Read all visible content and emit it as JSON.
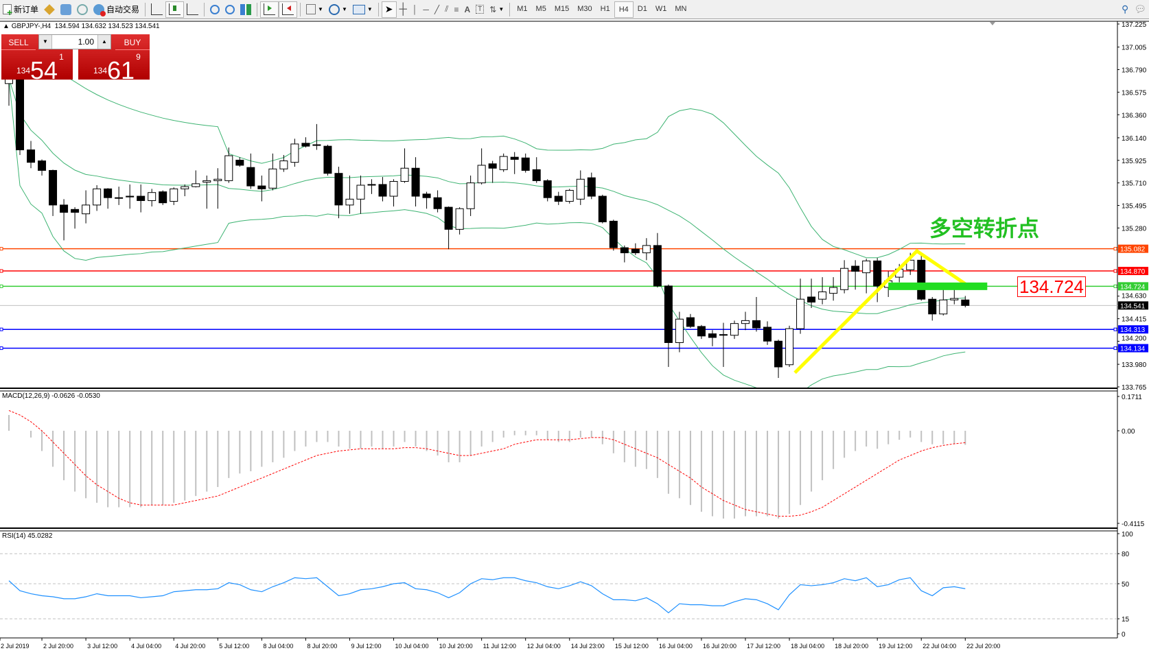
{
  "toolbar": {
    "new_order": "新订单",
    "auto_trading": "自动交易",
    "timeframes": [
      "M1",
      "M5",
      "M15",
      "M30",
      "H1",
      "H4",
      "D1",
      "W1",
      "MN"
    ],
    "active_timeframe": "H4",
    "icons": [
      "new-order-icon",
      "experts-icon",
      "market-watch-icon",
      "signals-icon",
      "auto-trading-icon",
      "bar-chart-icon",
      "candlestick-icon",
      "line-chart-icon",
      "zoom-in-icon",
      "zoom-out-icon",
      "tile-windows-icon",
      "auto-scroll-icon",
      "chart-shift-icon",
      "indicators-icon",
      "periods-icon",
      "templates-icon",
      "cursor-icon",
      "crosshair-icon",
      "vertical-line-icon",
      "horizontal-line-icon",
      "trendline-icon",
      "equidistant-channel-icon",
      "fibonacci-icon",
      "text-icon",
      "text-label-icon",
      "arrows-icon",
      "search-icon",
      "chat-icon"
    ]
  },
  "header": {
    "symbol": "GBPJPY-,H4",
    "ohlc": "134.594 134.632 134.523 134.541"
  },
  "one_click": {
    "sell_label": "SELL",
    "buy_label": "BUY",
    "lots": "1.00",
    "sell_prefix": "134",
    "sell_big": "54",
    "sell_small": "1",
    "buy_prefix": "134",
    "buy_big": "61",
    "buy_small": "9"
  },
  "colors": {
    "bull_fill": "#ffffff",
    "bear_fill": "#000000",
    "bands": "#3cb371",
    "macd_hist": "#c0c0c0",
    "macd_signal": "#ff0000",
    "rsi": "#1e90ff",
    "annotation_text": "#22c022",
    "annotation_lines": "#ffff00"
  },
  "chart_data": [
    {
      "type": "candlestick",
      "title": "GBPJPY-,H4",
      "ylim": [
        133.765,
        137.225
      ],
      "y_ticks": [
        "137.225",
        "137.005",
        "136.790",
        "136.575",
        "136.360",
        "136.140",
        "135.925",
        "135.710",
        "135.495",
        "135.280",
        "134.630",
        "134.415",
        "134.200",
        "133.980",
        "133.765"
      ],
      "x_labels": [
        "2 Jul 2019",
        "2 Jul 20:00",
        "3 Jul 12:00",
        "4 Jul 04:00",
        "4 Jul 20:00",
        "5 Jul 12:00",
        "8 Jul 04:00",
        "8 Jul 20:00",
        "9 Jul 12:00",
        "10 Jul 04:00",
        "10 Jul 20:00",
        "11 Jul 12:00",
        "12 Jul 04:00",
        "14 Jul 23:00",
        "15 Jul 12:00",
        "16 Jul 04:00",
        "16 Jul 20:00",
        "17 Jul 12:00",
        "18 Jul 04:00",
        "18 Jul 20:00",
        "19 Jul 12:00",
        "22 Jul 04:00",
        "22 Jul 20:00"
      ],
      "ohlc": [
        [
          136.657,
          136.762,
          136.446,
          136.706
        ],
        [
          136.706,
          136.727,
          135.976,
          136.025
        ],
        [
          136.025,
          136.11,
          135.85,
          135.906
        ],
        [
          135.92,
          135.934,
          135.78,
          135.829
        ],
        [
          135.829,
          135.836,
          135.394,
          135.499
        ],
        [
          135.499,
          135.555,
          135.162,
          135.429
        ],
        [
          135.457,
          135.478,
          135.274,
          135.429
        ],
        [
          135.415,
          135.639,
          135.324,
          135.499
        ],
        [
          135.499,
          135.688,
          135.443,
          135.653
        ],
        [
          135.653,
          135.66,
          135.464,
          135.569
        ],
        [
          135.569,
          135.674,
          135.499,
          135.569
        ],
        [
          135.583,
          135.695,
          135.464,
          135.576
        ],
        [
          135.583,
          135.695,
          135.429,
          135.541
        ],
        [
          135.541,
          135.653,
          135.485,
          135.618
        ],
        [
          135.625,
          135.639,
          135.499,
          135.52
        ],
        [
          135.534,
          135.667,
          135.499,
          135.653
        ],
        [
          135.653,
          135.695,
          135.583,
          135.674
        ],
        [
          135.674,
          135.829,
          135.667,
          135.702
        ],
        [
          135.717,
          135.78,
          135.464,
          135.731
        ],
        [
          135.731,
          135.85,
          135.464,
          135.745
        ],
        [
          135.731,
          136.047,
          135.71,
          135.969
        ],
        [
          135.927,
          135.955,
          135.864,
          135.878
        ],
        [
          135.857,
          135.99,
          135.653,
          135.681
        ],
        [
          135.681,
          135.78,
          135.534,
          135.653
        ],
        [
          135.66,
          135.99,
          135.639,
          135.843
        ],
        [
          135.843,
          135.976,
          135.815,
          135.92
        ],
        [
          135.906,
          136.131,
          135.864,
          136.081
        ],
        [
          136.088,
          136.145,
          136.047,
          136.06
        ],
        [
          136.074,
          136.271,
          136.025,
          136.067
        ],
        [
          136.06,
          136.074,
          135.78,
          135.801
        ],
        [
          135.801,
          135.864,
          135.373,
          135.499
        ],
        [
          135.499,
          135.78,
          135.415,
          135.555
        ],
        [
          135.555,
          135.78,
          135.415,
          135.688
        ],
        [
          135.695,
          135.745,
          135.604,
          135.688
        ],
        [
          135.695,
          135.766,
          135.534,
          135.583
        ],
        [
          135.583,
          135.745,
          135.485,
          135.724
        ],
        [
          135.724,
          136.039,
          135.71,
          135.85
        ],
        [
          135.85,
          135.955,
          135.485,
          135.583
        ],
        [
          135.604,
          135.625,
          135.464,
          135.569
        ],
        [
          135.569,
          135.639,
          135.429,
          135.464
        ],
        [
          135.478,
          135.485,
          135.078,
          135.267
        ],
        [
          135.267,
          135.478,
          135.218,
          135.464
        ],
        [
          135.464,
          135.78,
          135.394,
          135.71
        ],
        [
          135.71,
          136.039,
          135.695,
          135.878
        ],
        [
          135.892,
          135.92,
          135.71,
          135.85
        ],
        [
          135.836,
          135.99,
          135.815,
          135.962
        ],
        [
          135.955,
          136.004,
          135.794,
          135.934
        ],
        [
          135.948,
          135.99,
          135.808,
          135.829
        ],
        [
          135.836,
          135.955,
          135.71,
          135.731
        ],
        [
          135.731,
          135.745,
          135.534,
          135.569
        ],
        [
          135.583,
          135.625,
          135.499,
          135.534
        ],
        [
          135.534,
          135.653,
          135.513,
          135.639
        ],
        [
          135.555,
          135.829,
          135.499,
          135.745
        ],
        [
          135.759,
          135.808,
          135.555,
          135.583
        ],
        [
          135.583,
          135.597,
          135.324,
          135.338
        ],
        [
          135.345,
          135.359,
          135.064,
          135.092
        ],
        [
          135.092,
          135.113,
          134.952,
          135.043
        ],
        [
          135.078,
          135.134,
          135.022,
          135.043
        ],
        [
          135.043,
          135.183,
          134.973,
          135.113
        ],
        [
          135.113,
          135.232,
          134.713,
          134.727
        ],
        [
          134.727,
          134.741,
          133.955,
          134.187
        ],
        [
          134.187,
          134.481,
          134.095,
          134.411
        ],
        [
          134.425,
          134.46,
          134.327,
          134.341
        ],
        [
          134.341,
          134.355,
          134.222,
          134.25
        ],
        [
          134.271,
          134.306,
          134.152,
          134.236
        ],
        [
          134.264,
          134.376,
          133.955,
          134.257
        ],
        [
          134.257,
          134.397,
          134.222,
          134.369
        ],
        [
          134.369,
          134.481,
          134.306,
          134.397
        ],
        [
          134.397,
          134.622,
          134.292,
          134.327
        ],
        [
          134.334,
          134.39,
          134.165,
          134.201
        ],
        [
          134.201,
          134.215,
          133.85,
          133.955
        ],
        [
          133.976,
          134.348,
          133.955,
          134.32
        ],
        [
          134.32,
          134.797,
          134.271,
          134.601
        ],
        [
          134.622,
          134.797,
          134.517,
          134.573
        ],
        [
          134.601,
          134.811,
          134.552,
          134.671
        ],
        [
          134.657,
          134.811,
          134.587,
          134.713
        ],
        [
          134.692,
          134.973,
          134.657,
          134.895
        ],
        [
          134.916,
          134.973,
          134.692,
          134.867
        ],
        [
          134.853,
          134.987,
          134.657,
          134.966
        ],
        [
          134.966,
          134.994,
          134.573,
          134.727
        ],
        [
          134.713,
          134.867,
          134.622,
          134.776
        ],
        [
          134.811,
          134.937,
          134.762,
          134.888
        ],
        [
          134.881,
          135.043,
          134.832,
          134.973
        ],
        [
          134.973,
          135.022,
          134.587,
          134.601
        ],
        [
          134.601,
          134.622,
          134.397,
          134.46
        ],
        [
          134.46,
          134.692,
          134.446,
          134.594
        ],
        [
          134.594,
          134.692,
          134.552,
          134.608
        ],
        [
          134.594,
          134.632,
          134.523,
          134.541
        ]
      ],
      "bollinger": {
        "period": 20,
        "deviation": 2
      },
      "horizontal_lines": [
        {
          "price": 135.082,
          "label": "135.082",
          "color": "#ff4500"
        },
        {
          "price": 134.87,
          "label": "134.870",
          "color": "#ff0000"
        },
        {
          "price": 134.724,
          "label": "134.724",
          "color": "#32cd32"
        },
        {
          "price": 134.313,
          "label": "134.313",
          "color": "#0000ff"
        },
        {
          "price": 134.134,
          "label": "134.134",
          "color": "#0000ff"
        }
      ],
      "bid_line": {
        "price": 134.541,
        "label": "134.541",
        "color": "#c0c0c0"
      },
      "annotations": {
        "text": "多空转折点",
        "price_box": "134.724",
        "yellow_polyline": [
          {
            "bar": 71.5,
            "price": 133.9
          },
          {
            "bar": 82.6,
            "price": 135.06
          },
          {
            "bar": 87.1,
            "price": 134.74
          }
        ],
        "green_bar": {
          "from_bar": 80,
          "to_bar": 89,
          "price": 134.724
        }
      }
    },
    {
      "type": "bar+line",
      "label": "MACD(12,26,9) -0.0626 -0.0530",
      "ylim": [
        -0.4115,
        0.1711
      ],
      "y_ticks": [
        "0.1711",
        "0.00",
        "-0.4115"
      ],
      "histogram": [
        0.07,
        0.0,
        -0.03,
        -0.09,
        -0.16,
        -0.22,
        -0.27,
        -0.3,
        -0.32,
        -0.34,
        -0.34,
        -0.34,
        -0.34,
        -0.33,
        -0.33,
        -0.32,
        -0.31,
        -0.29,
        -0.27,
        -0.25,
        -0.21,
        -0.19,
        -0.18,
        -0.16,
        -0.14,
        -0.12,
        -0.09,
        -0.07,
        -0.05,
        -0.05,
        -0.07,
        -0.08,
        -0.08,
        -0.07,
        -0.08,
        -0.07,
        -0.05,
        -0.07,
        -0.09,
        -0.11,
        -0.14,
        -0.14,
        -0.11,
        -0.07,
        -0.05,
        -0.03,
        -0.02,
        -0.02,
        -0.02,
        -0.04,
        -0.05,
        -0.05,
        -0.03,
        -0.03,
        -0.06,
        -0.1,
        -0.14,
        -0.16,
        -0.17,
        -0.21,
        -0.28,
        -0.3,
        -0.33,
        -0.36,
        -0.38,
        -0.39,
        -0.39,
        -0.38,
        -0.38,
        -0.38,
        -0.39,
        -0.37,
        -0.33,
        -0.27,
        -0.22,
        -0.17,
        -0.12,
        -0.09,
        -0.07,
        -0.08,
        -0.06,
        -0.04,
        -0.03,
        -0.05,
        -0.06,
        -0.06,
        -0.06,
        -0.0626
      ],
      "signal": [
        0.09,
        0.07,
        0.04,
        0.0,
        -0.05,
        -0.1,
        -0.15,
        -0.2,
        -0.24,
        -0.27,
        -0.3,
        -0.32,
        -0.33,
        -0.33,
        -0.33,
        -0.33,
        -0.32,
        -0.31,
        -0.3,
        -0.29,
        -0.27,
        -0.25,
        -0.23,
        -0.21,
        -0.19,
        -0.17,
        -0.15,
        -0.13,
        -0.11,
        -0.1,
        -0.09,
        -0.085,
        -0.08,
        -0.08,
        -0.08,
        -0.08,
        -0.075,
        -0.075,
        -0.08,
        -0.09,
        -0.1,
        -0.11,
        -0.11,
        -0.1,
        -0.09,
        -0.08,
        -0.06,
        -0.05,
        -0.04,
        -0.04,
        -0.04,
        -0.04,
        -0.035,
        -0.03,
        -0.03,
        -0.04,
        -0.06,
        -0.08,
        -0.1,
        -0.12,
        -0.15,
        -0.18,
        -0.21,
        -0.25,
        -0.28,
        -0.31,
        -0.33,
        -0.35,
        -0.36,
        -0.37,
        -0.38,
        -0.38,
        -0.375,
        -0.36,
        -0.34,
        -0.31,
        -0.28,
        -0.25,
        -0.22,
        -0.19,
        -0.16,
        -0.13,
        -0.11,
        -0.09,
        -0.075,
        -0.065,
        -0.058,
        -0.053
      ]
    },
    {
      "type": "line",
      "label": "RSI(14) 45.0282",
      "ylim": [
        0,
        100
      ],
      "y_ticks": [
        "100",
        "80",
        "50",
        "15",
        "0"
      ],
      "levels": [
        80,
        50,
        15
      ],
      "values": [
        53,
        43,
        40,
        38,
        37,
        35,
        35,
        37,
        40,
        38,
        38,
        38,
        36,
        37,
        38,
        42,
        43,
        44,
        44,
        45,
        51,
        49,
        44,
        42,
        47,
        51,
        56,
        55,
        56,
        47,
        38,
        40,
        44,
        45,
        47,
        50,
        51,
        45,
        44,
        41,
        36,
        41,
        50,
        55,
        54,
        56,
        56,
        53,
        51,
        47,
        45,
        48,
        52,
        48,
        40,
        34,
        34,
        33,
        36,
        30,
        21,
        30,
        29,
        29,
        28,
        28,
        32,
        35,
        34,
        30,
        24,
        39,
        49,
        48,
        49,
        51,
        55,
        53,
        56,
        47,
        49,
        54,
        56,
        43,
        38,
        46,
        47,
        45.03
      ]
    }
  ]
}
